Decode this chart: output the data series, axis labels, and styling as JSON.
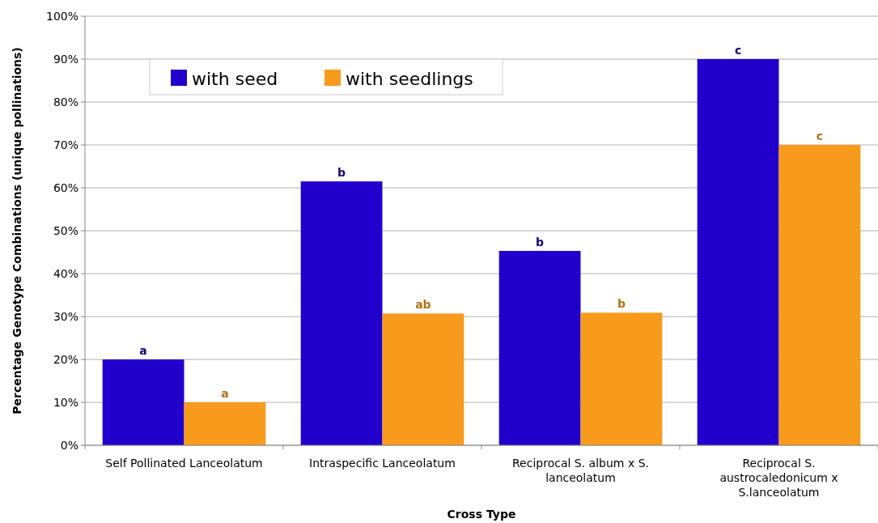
{
  "chart_data": {
    "type": "bar",
    "xlabel": "Cross Type",
    "ylabel": "Percentage Genotype Combinations (unique pollinations)",
    "categories": [
      "Self Pollinated Lanceolatum",
      "Intraspecific Lanceolatum",
      "Reciprocal S. album x S. lanceolatum",
      "Reciprocal S. austrocaledonicum x S.lanceolatum"
    ],
    "series": [
      {
        "name": "with seed",
        "color": "#2200cc",
        "values": [
          20,
          61.5,
          45.3,
          90
        ],
        "value_labels": [
          "a",
          "b",
          "b",
          "c"
        ]
      },
      {
        "name": "with seedlings",
        "color": "#f89a1c",
        "values": [
          10,
          30.7,
          30.9,
          70
        ],
        "value_labels": [
          "a",
          "ab",
          "b",
          "c"
        ]
      }
    ],
    "ylim": [
      0,
      100
    ],
    "yticks": [
      {
        "value": 0,
        "label": "0%"
      },
      {
        "value": 10,
        "label": "10%"
      },
      {
        "value": 20,
        "label": "20%"
      },
      {
        "value": 30,
        "label": "30%"
      },
      {
        "value": 40,
        "label": "40%"
      },
      {
        "value": 50,
        "label": "50%"
      },
      {
        "value": 60,
        "label": "60%"
      },
      {
        "value": 70,
        "label": "70%"
      },
      {
        "value": 80,
        "label": "80%"
      },
      {
        "value": 90,
        "label": "90%"
      },
      {
        "value": 100,
        "label": "100%"
      }
    ],
    "grid": "y",
    "legend": "top left"
  }
}
